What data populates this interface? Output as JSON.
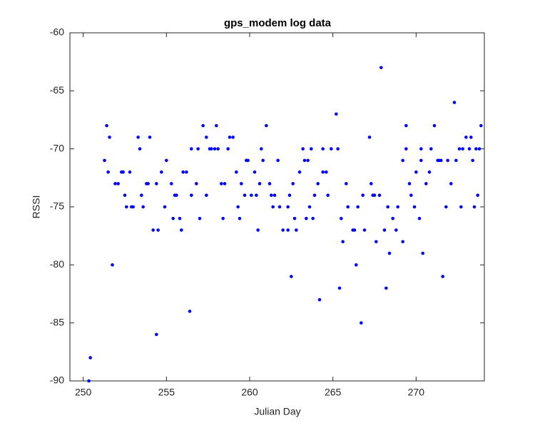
{
  "chart_data": {
    "type": "scatter",
    "title": "gps_modem log data",
    "x_label": "Julian Day",
    "y_label": "RSSI",
    "color": "#0000ff",
    "xlim": [
      249.2,
      274.1
    ],
    "ylim": [
      -90,
      -60
    ],
    "xticks": [
      250,
      255,
      260,
      265,
      270
    ],
    "yticks": [
      -90,
      -85,
      -80,
      -75,
      -70,
      -65,
      -60
    ],
    "grid": false,
    "x": [
      250.34,
      250.43,
      251.28,
      251.41,
      251.5,
      251.58,
      251.75,
      251.92,
      252.1,
      252.3,
      252.4,
      252.5,
      252.6,
      252.8,
      252.9,
      253.0,
      253.3,
      253.4,
      253.5,
      253.6,
      253.8,
      253.9,
      254.0,
      254.2,
      254.4,
      254.4,
      254.5,
      254.7,
      254.9,
      255.0,
      255.3,
      255.4,
      255.5,
      255.6,
      255.8,
      255.9,
      256.0,
      256.2,
      256.4,
      256.5,
      256.5,
      256.8,
      256.9,
      257.0,
      257.2,
      257.4,
      257.4,
      257.6,
      257.7,
      257.9,
      258.0,
      258.1,
      258.3,
      258.4,
      258.5,
      258.7,
      258.8,
      259.0,
      259.2,
      259.3,
      259.4,
      259.5,
      259.7,
      259.8,
      259.9,
      260.1,
      260.3,
      260.4,
      260.5,
      260.6,
      260.7,
      260.8,
      261.0,
      261.2,
      261.3,
      261.4,
      261.5,
      261.7,
      261.8,
      262.0,
      262.3,
      262.3,
      262.4,
      262.5,
      262.6,
      262.7,
      262.8,
      263.0,
      263.2,
      263.3,
      263.4,
      263.5,
      263.6,
      263.7,
      263.8,
      263.9,
      264.1,
      264.2,
      264.4,
      264.4,
      264.6,
      264.7,
      264.9,
      265.2,
      265.3,
      265.4,
      265.5,
      265.6,
      265.8,
      265.9,
      266.2,
      266.3,
      266.4,
      266.5,
      266.7,
      266.8,
      266.9,
      267.2,
      267.3,
      267.4,
      267.5,
      267.6,
      267.8,
      267.9,
      268.1,
      268.2,
      268.3,
      268.4,
      268.6,
      268.8,
      268.9,
      269.2,
      269.2,
      269.4,
      269.4,
      269.6,
      269.7,
      269.9,
      270.0,
      270.2,
      270.3,
      270.3,
      270.4,
      270.6,
      270.8,
      270.9,
      271.1,
      271.3,
      271.4,
      271.5,
      271.6,
      271.8,
      271.9,
      272.1,
      272.3,
      272.4,
      272.6,
      272.7,
      272.8,
      273.0,
      273.2,
      273.3,
      273.4,
      273.5,
      273.6,
      273.7,
      273.8,
      273.9
    ],
    "y": [
      -90,
      -88,
      -71,
      -68,
      -72,
      -69,
      -80,
      -73,
      -73,
      -72,
      -72,
      -74,
      -75,
      -72,
      -75,
      -75,
      -69,
      -70,
      -74,
      -75,
      -73,
      -73,
      -69,
      -77,
      -73,
      -86,
      -77,
      -72,
      -75,
      -71,
      -73,
      -76,
      -74,
      -74,
      -76,
      -77,
      -72,
      -72,
      -84,
      -74,
      -70,
      -73,
      -70,
      -76,
      -68,
      -69,
      -74,
      -70,
      -70,
      -70,
      -68,
      -70,
      -73,
      -76,
      -73,
      -70,
      -69,
      -69,
      -72,
      -75,
      -76,
      -73,
      -74,
      -71,
      -71,
      -74,
      -72,
      -74,
      -77,
      -73,
      -70,
      -71,
      -68,
      -73,
      -74,
      -75,
      -74,
      -71,
      -75,
      -77,
      -77,
      -75,
      -74,
      -81,
      -73,
      -76,
      -77,
      -72,
      -70,
      -71,
      -76,
      -71,
      -75,
      -70,
      -76,
      -74,
      -73,
      -83,
      -70,
      -72,
      -72,
      -74,
      -70,
      -67,
      -70,
      -82,
      -76,
      -78,
      -73,
      -75,
      -77,
      -77,
      -80,
      -75,
      -85,
      -74,
      -77,
      -69,
      -73,
      -74,
      -74,
      -78,
      -74,
      -63,
      -77,
      -82,
      -75,
      -79,
      -76,
      -77,
      -75,
      -78,
      -71,
      -70,
      -68,
      -73,
      -74,
      -75,
      -72,
      -76,
      -71,
      -70,
      -79,
      -73,
      -72,
      -70,
      -68,
      -71,
      -71,
      -71,
      -81,
      -75,
      -71,
      -73,
      -66,
      -71,
      -70,
      -75,
      -70,
      -69,
      -70,
      -69,
      -71,
      -75,
      -70,
      -74,
      -70,
      -68
    ]
  }
}
